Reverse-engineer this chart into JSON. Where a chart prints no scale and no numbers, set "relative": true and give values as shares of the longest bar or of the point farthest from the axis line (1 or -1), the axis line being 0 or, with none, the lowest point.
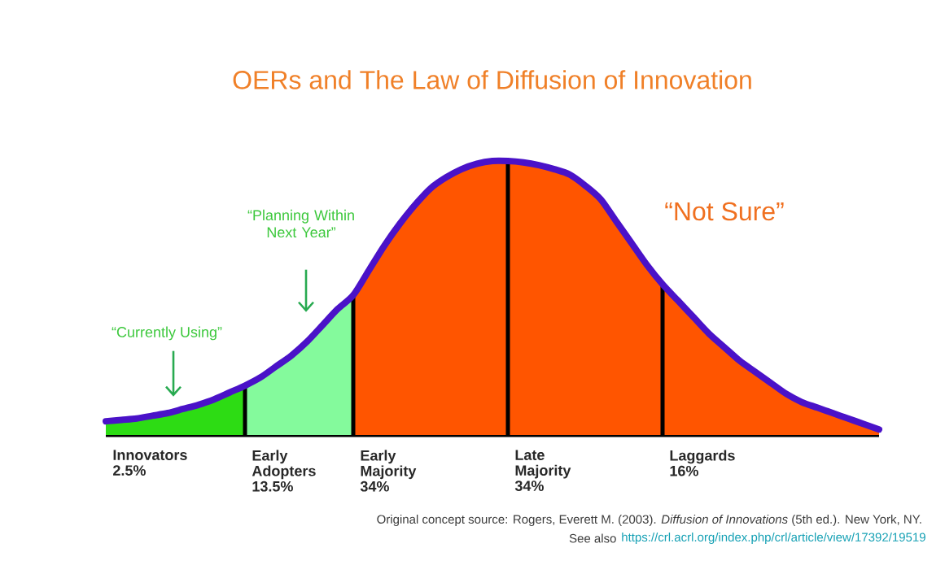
{
  "chart_data": {
    "type": "area",
    "relative": true,
    "title": "OERs and The Law of Diffusion of Innovation",
    "categories": [
      null,
      null,
      null,
      null,
      null,
      null,
      null,
      null,
      null,
      null,
      null,
      null,
      null,
      null,
      null,
      null,
      null,
      null,
      null,
      null,
      null,
      null,
      null,
      null,
      null,
      null,
      null,
      null,
      null,
      null,
      null,
      null,
      null,
      null,
      null,
      null,
      null,
      null,
      null,
      null,
      null,
      null,
      null,
      null,
      null,
      null,
      null,
      null,
      null,
      null,
      null
    ],
    "series": [
      {
        "name": "Innovators",
        "color": "#2ddc14",
        "values": [
          0.05,
          0.055,
          0.06,
          0.07,
          0.08,
          0.095,
          0.11,
          0.13,
          0.155,
          0.18,
          null,
          null,
          null,
          null,
          null,
          null,
          null,
          null,
          null,
          null,
          null,
          null,
          null,
          null,
          null,
          null,
          null,
          null,
          null,
          null,
          null,
          null,
          null,
          null,
          null,
          null,
          null,
          null,
          null,
          null,
          null,
          null,
          null,
          null,
          null,
          null,
          null,
          null,
          null,
          null,
          null
        ]
      },
      {
        "name": "Early Adopters",
        "color": "#84fa9c",
        "values": [
          null,
          null,
          null,
          null,
          null,
          null,
          null,
          null,
          null,
          0.18,
          0.21,
          0.25,
          0.29,
          0.34,
          0.4,
          0.46,
          0.51,
          null,
          null,
          null,
          null,
          null,
          null,
          null,
          null,
          null,
          null,
          null,
          null,
          null,
          null,
          null,
          null,
          null,
          null,
          null,
          null,
          null,
          null,
          null,
          null,
          null,
          null,
          null,
          null,
          null,
          null,
          null,
          null,
          null,
          null
        ]
      },
      {
        "name": "Early Majority",
        "color": "#ff5500",
        "values": [
          null,
          null,
          null,
          null,
          null,
          null,
          null,
          null,
          null,
          null,
          null,
          null,
          null,
          null,
          null,
          null,
          0.51,
          0.6,
          0.69,
          0.77,
          0.84,
          0.9,
          0.94,
          0.97,
          0.99,
          1.0,
          1.0,
          null,
          null,
          null,
          null,
          null,
          null,
          null,
          null,
          null,
          null,
          null,
          null,
          null,
          null,
          null,
          null,
          null,
          null,
          null,
          null,
          null,
          null,
          null,
          null
        ]
      },
      {
        "name": "Late Majority",
        "color": "#ff5500",
        "values": [
          null,
          null,
          null,
          null,
          null,
          null,
          null,
          null,
          null,
          null,
          null,
          null,
          null,
          null,
          null,
          null,
          null,
          null,
          null,
          null,
          null,
          null,
          null,
          null,
          null,
          null,
          1.0,
          0.995,
          0.985,
          0.97,
          0.95,
          0.91,
          0.86,
          0.78,
          0.7,
          0.62,
          0.55,
          null,
          null,
          null,
          null,
          null,
          null,
          null,
          null,
          null,
          null,
          null,
          null,
          null,
          null
        ]
      },
      {
        "name": "Laggards",
        "color": "#ff5500",
        "values": [
          null,
          null,
          null,
          null,
          null,
          null,
          null,
          null,
          null,
          null,
          null,
          null,
          null,
          null,
          null,
          null,
          null,
          null,
          null,
          null,
          null,
          null,
          null,
          null,
          null,
          null,
          null,
          null,
          null,
          null,
          null,
          null,
          null,
          null,
          null,
          null,
          0.55,
          0.49,
          0.43,
          0.37,
          0.32,
          0.27,
          0.23,
          0.19,
          0.15,
          0.12,
          0.1,
          0.08,
          0.06,
          0.04,
          0.02
        ]
      },
      {
        "type": "line",
        "color": "#4a12c8",
        "values": [
          0.05,
          0.055,
          0.06,
          0.07,
          0.08,
          0.095,
          0.11,
          0.13,
          0.155,
          0.18,
          0.21,
          0.25,
          0.29,
          0.34,
          0.4,
          0.46,
          0.51,
          0.6,
          0.69,
          0.77,
          0.84,
          0.9,
          0.94,
          0.97,
          0.99,
          1.0,
          1.0,
          0.995,
          0.985,
          0.97,
          0.95,
          0.91,
          0.86,
          0.78,
          0.7,
          0.62,
          0.55,
          0.49,
          0.43,
          0.37,
          0.32,
          0.27,
          0.23,
          0.19,
          0.15,
          0.12,
          0.1,
          0.08,
          0.06,
          0.04,
          0.02
        ]
      }
    ],
    "annotations": [
      "2.5%",
      "13.5%",
      "34%",
      "34%",
      "16%",
      "“Currently Using”",
      "“Planning Within Next Year”",
      "“Not Sure”",
      "Original concept source: Rogers, Everett M. (2003). *Diffusion of Innovations* (5th ed.). New York, NY.",
      "See also",
      "https://crl.acrl.org/index.php/crl/article/view/17392/19519"
    ]
  }
}
